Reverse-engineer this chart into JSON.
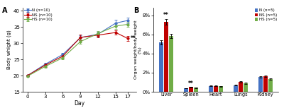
{
  "panel_A": {
    "days": [
      0,
      3,
      6,
      9,
      12,
      15,
      17
    ],
    "N": [
      20.0,
      23.5,
      26.5,
      31.7,
      32.8,
      36.2,
      37.0
    ],
    "NS": [
      20.0,
      23.2,
      26.0,
      31.8,
      32.5,
      33.3,
      31.5
    ],
    "HS": [
      19.8,
      22.8,
      25.5,
      30.5,
      33.0,
      35.3,
      35.8
    ],
    "N_err": [
      0.2,
      0.5,
      0.6,
      0.7,
      0.8,
      1.0,
      0.9
    ],
    "NS_err": [
      0.2,
      0.5,
      0.5,
      0.8,
      0.7,
      0.7,
      0.7
    ],
    "HS_err": [
      0.2,
      0.4,
      0.5,
      0.7,
      0.7,
      0.8,
      0.8
    ],
    "colors": {
      "N": "#4472c4",
      "NS": "#c00000",
      "HS": "#70ad47"
    },
    "ylabel": "Body whight (g)",
    "xlabel": "Day",
    "ylim": [
      15,
      41
    ],
    "yticks": [
      15,
      20,
      25,
      30,
      35,
      40
    ],
    "xticks": [
      0,
      3,
      6,
      9,
      12,
      15,
      17
    ],
    "label": "A",
    "sig_label": "**",
    "legend": [
      "N (n=10)",
      "NS (n=10)",
      "HS (n=10)"
    ]
  },
  "panel_B": {
    "organs": [
      "Liver",
      "Spleen",
      "Heart",
      "Lungs",
      "Kidney"
    ],
    "N": [
      5.15,
      0.37,
      0.6,
      0.7,
      1.55
    ],
    "NS": [
      7.3,
      0.5,
      0.63,
      1.02,
      1.62
    ],
    "HS": [
      5.85,
      0.42,
      0.58,
      0.92,
      1.35
    ],
    "N_err": [
      0.2,
      0.03,
      0.04,
      0.05,
      0.1
    ],
    "NS_err": [
      0.28,
      0.05,
      0.04,
      0.09,
      0.1
    ],
    "HS_err": [
      0.22,
      0.04,
      0.04,
      0.07,
      0.08
    ],
    "colors": {
      "N": "#4472c4",
      "NS": "#c00000",
      "HS": "#70ad47"
    },
    "ylabel": "Organ weight/body weight\n(%)",
    "ylim": [
      0,
      8.8
    ],
    "ytick_labels": [
      "0%",
      "2%",
      "4%",
      "6%",
      "8%"
    ],
    "yticks": [
      0,
      2,
      4,
      6,
      8
    ],
    "label": "B",
    "sig_liver": "**",
    "sig_spleen": "**",
    "legend": [
      "N (n=5)",
      "NS (n=5)",
      "HS (n=5)"
    ]
  },
  "background_color": "#ffffff"
}
